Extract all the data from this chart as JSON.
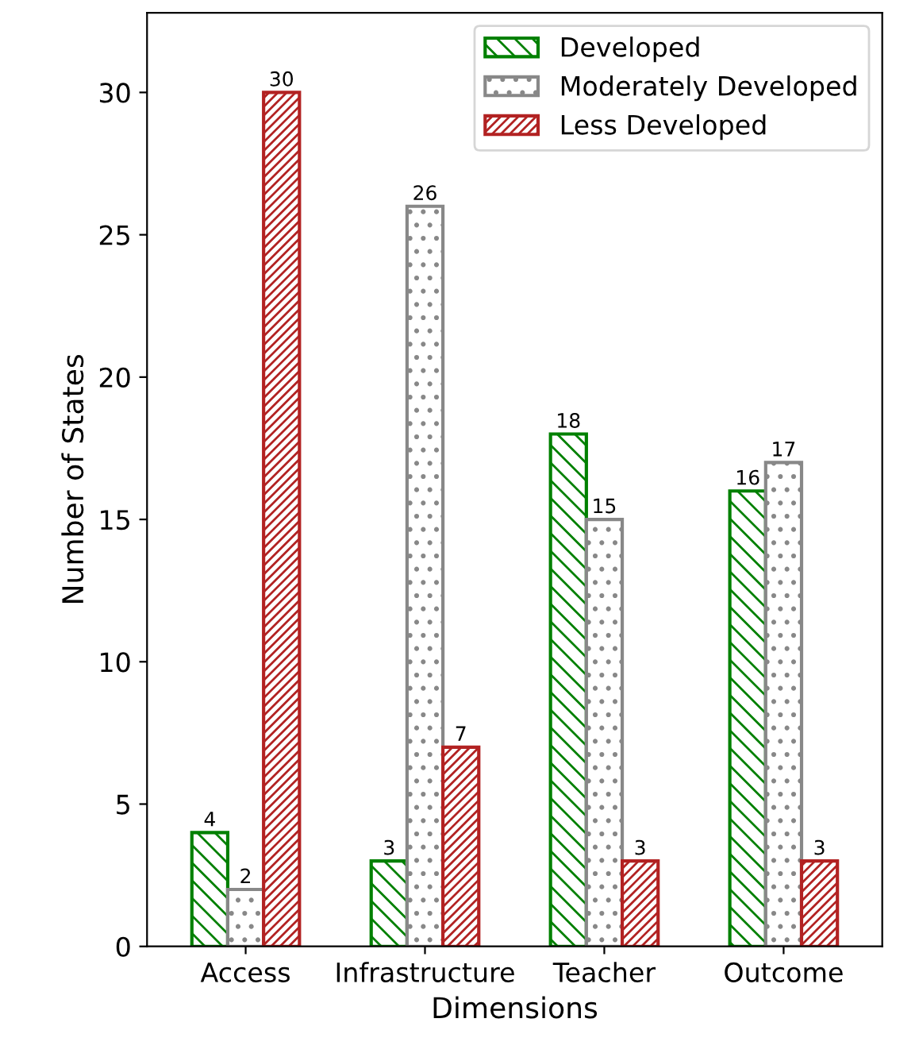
{
  "chart_data": {
    "type": "bar",
    "xlabel": "Dimensions",
    "ylabel": "Number of States",
    "categories": [
      "Access",
      "Infrastructure",
      "Teacher",
      "Outcome"
    ],
    "series": [
      {
        "name": "Developed",
        "color": "#008000",
        "values": [
          4,
          3,
          18,
          16
        ]
      },
      {
        "name": "Moderately Developed",
        "color": "#888888",
        "values": [
          2,
          26,
          15,
          17
        ]
      },
      {
        "name": "Less Developed",
        "color": "#b22222",
        "values": [
          30,
          7,
          3,
          3
        ]
      }
    ],
    "ylim": [
      0,
      32.8
    ],
    "yticks": [
      0,
      5,
      10,
      15,
      20,
      25,
      30
    ],
    "grid": false,
    "legend": "top right",
    "data_labels": true
  }
}
